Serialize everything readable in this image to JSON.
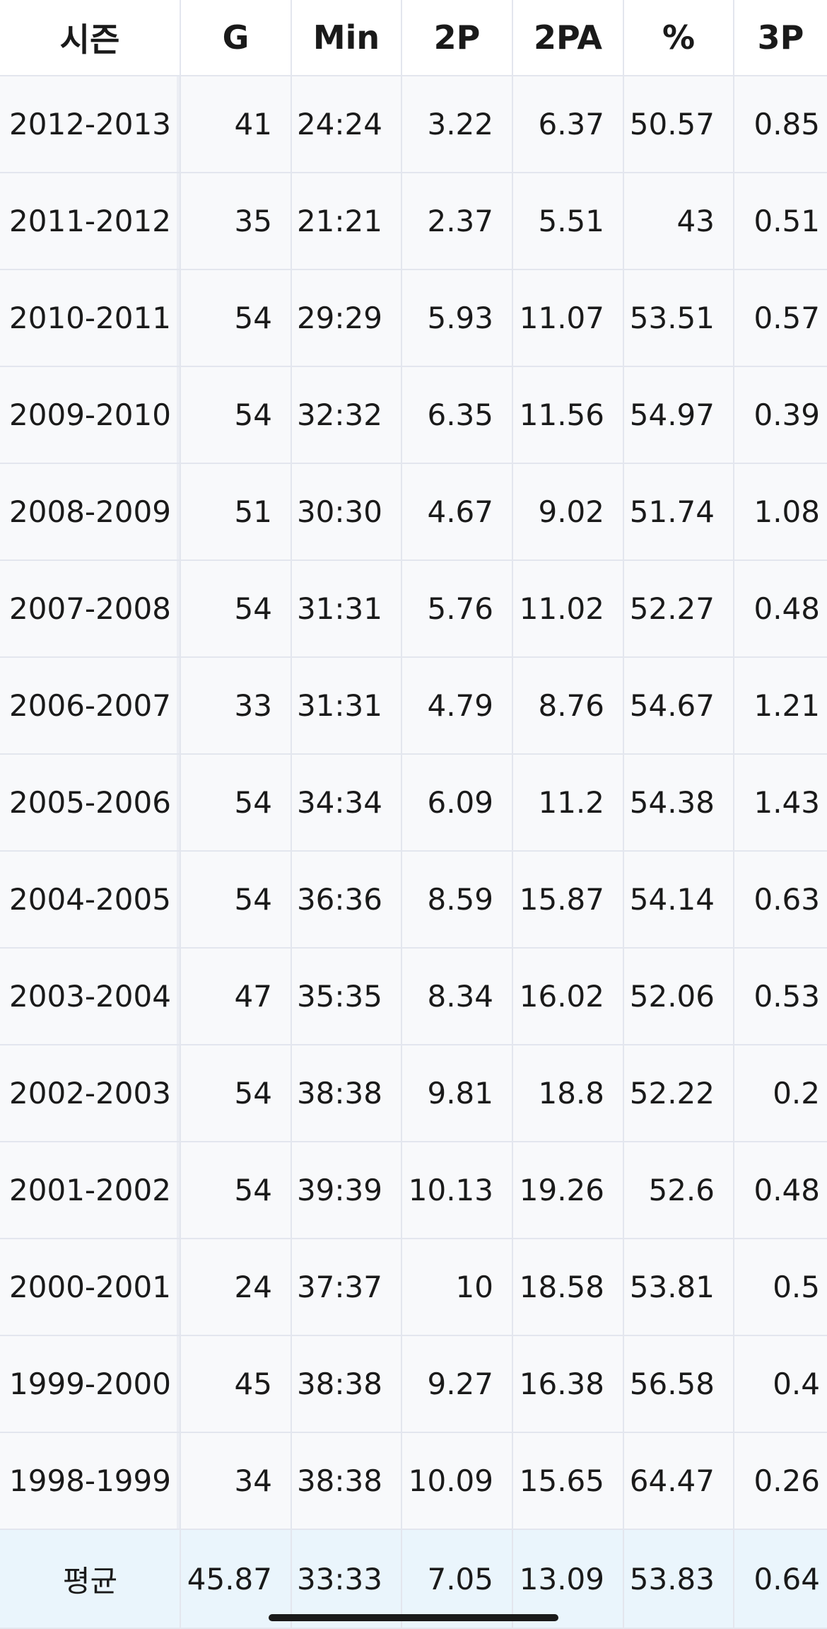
{
  "columns": [
    "시즌",
    "G",
    "Min",
    "2P",
    "2PA",
    "%",
    "3P"
  ],
  "rows": [
    [
      "2012-2013",
      "41",
      "24:24",
      "3.22",
      "6.37",
      "50.57",
      "0.85"
    ],
    [
      "2011-2012",
      "35",
      "21:21",
      "2.37",
      "5.51",
      "43",
      "0.51"
    ],
    [
      "2010-2011",
      "54",
      "29:29",
      "5.93",
      "11.07",
      "53.51",
      "0.57"
    ],
    [
      "2009-2010",
      "54",
      "32:32",
      "6.35",
      "11.56",
      "54.97",
      "0.39"
    ],
    [
      "2008-2009",
      "51",
      "30:30",
      "4.67",
      "9.02",
      "51.74",
      "1.08"
    ],
    [
      "2007-2008",
      "54",
      "31:31",
      "5.76",
      "11.02",
      "52.27",
      "0.48"
    ],
    [
      "2006-2007",
      "33",
      "31:31",
      "4.79",
      "8.76",
      "54.67",
      "1.21"
    ],
    [
      "2005-2006",
      "54",
      "34:34",
      "6.09",
      "11.2",
      "54.38",
      "1.43"
    ],
    [
      "2004-2005",
      "54",
      "36:36",
      "8.59",
      "15.87",
      "54.14",
      "0.63"
    ],
    [
      "2003-2004",
      "47",
      "35:35",
      "8.34",
      "16.02",
      "52.06",
      "0.53"
    ],
    [
      "2002-2003",
      "54",
      "38:38",
      "9.81",
      "18.8",
      "52.22",
      "0.2"
    ],
    [
      "2001-2002",
      "54",
      "39:39",
      "10.13",
      "19.26",
      "52.6",
      "0.48"
    ],
    [
      "2000-2001",
      "24",
      "37:37",
      "10",
      "18.58",
      "53.81",
      "0.5"
    ],
    [
      "1999-2000",
      "45",
      "38:38",
      "9.27",
      "16.38",
      "56.58",
      "0.4"
    ],
    [
      "1998-1999",
      "34",
      "38:38",
      "10.09",
      "15.65",
      "64.47",
      "0.26"
    ]
  ],
  "average": [
    "평균",
    "45.87",
    "33:33",
    "7.05",
    "13.09",
    "53.83",
    "0.64"
  ]
}
